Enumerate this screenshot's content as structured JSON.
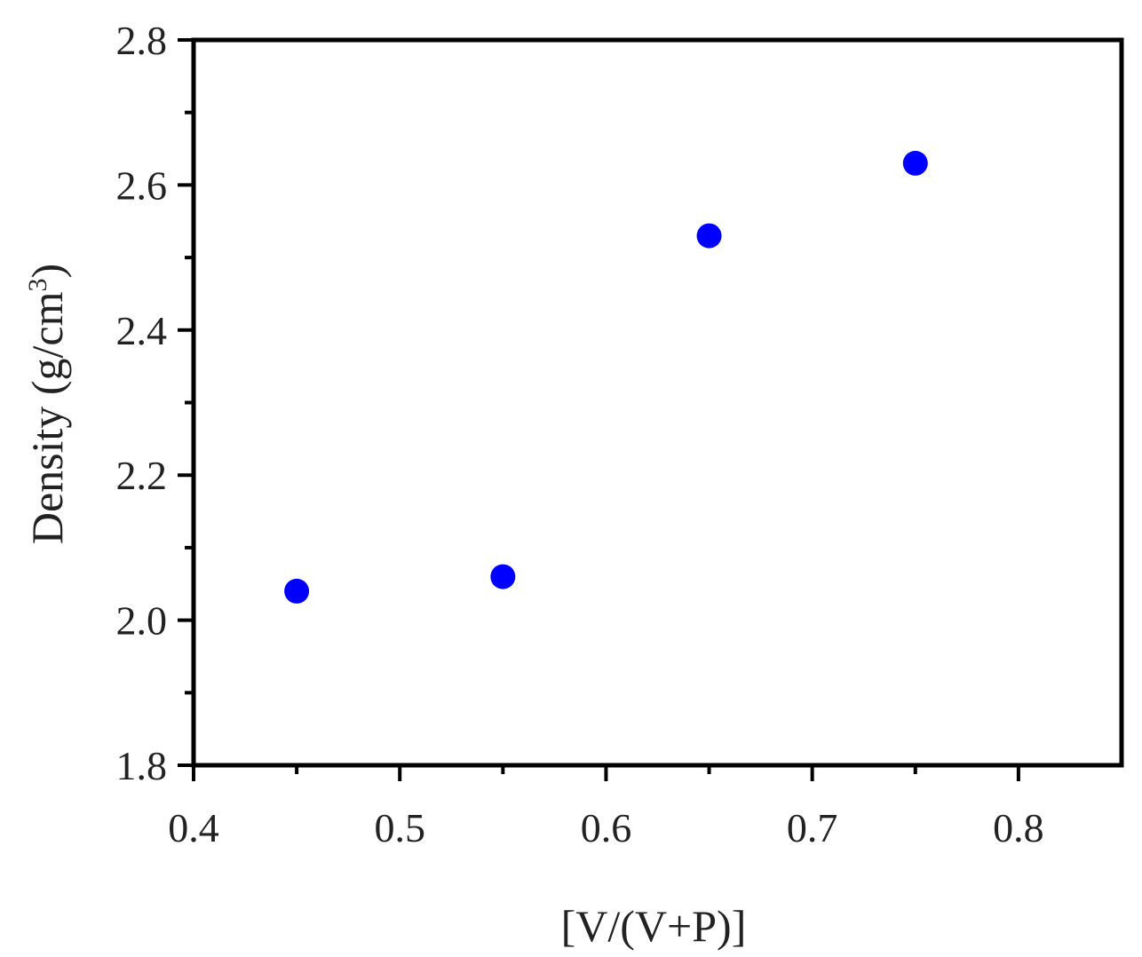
{
  "chart_data": {
    "type": "scatter",
    "title": "",
    "xlabel": "[V/(V+P)]",
    "ylabel": {
      "main": "Density (g/cm",
      "superscript": "3",
      "close": ")"
    },
    "xlim": [
      0.4,
      0.85
    ],
    "ylim": [
      1.8,
      2.8
    ],
    "x_ticks": [
      0.4,
      0.5,
      0.6,
      0.7,
      0.8
    ],
    "x_tick_labels": [
      "0.4",
      "0.5",
      "0.6",
      "0.7",
      "0.8"
    ],
    "y_ticks": [
      1.8,
      2.0,
      2.2,
      2.4,
      2.6,
      2.8
    ],
    "y_tick_labels": [
      "1.8",
      "2.0",
      "2.2",
      "2.4",
      "2.6",
      "2.8"
    ],
    "y_minor_ticks": [
      1.9,
      2.1,
      2.3,
      2.5,
      2.7
    ],
    "x_minor_ticks": [
      0.45,
      0.55,
      0.65,
      0.75
    ],
    "grid": false,
    "legend": "none",
    "x": [
      0.45,
      0.55,
      0.65,
      0.75
    ],
    "y": [
      2.04,
      2.06,
      2.53,
      2.63
    ],
    "marker_color": "#0000ff",
    "axis_color": "#000000"
  }
}
